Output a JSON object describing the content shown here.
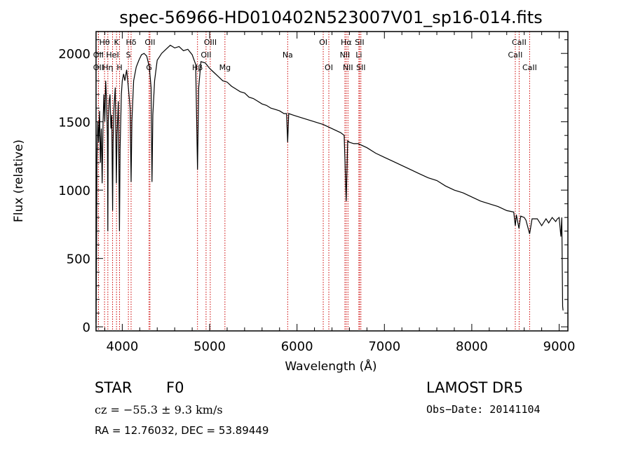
{
  "chart_data": {
    "type": "line",
    "title": "spec-56966-HD010402N523007V01_sp16-014.fits",
    "xlabel": "Wavelength (Å)",
    "ylabel": "Flux (relative)",
    "xlim": [
      3700,
      9100
    ],
    "ylim": [
      -30,
      2160
    ],
    "x_ticks": [
      4000,
      5000,
      6000,
      7000,
      8000,
      9000
    ],
    "y_ticks": [
      0,
      500,
      1000,
      1500,
      2000
    ],
    "grid": false,
    "line_color": "#000000",
    "marker_color": "#cc0000",
    "spectrum_points": [
      [
        3700,
        30
      ],
      [
        3705,
        500
      ],
      [
        3710,
        1200
      ],
      [
        3720,
        1500
      ],
      [
        3730,
        1350
      ],
      [
        3740,
        1580
      ],
      [
        3750,
        1200
      ],
      [
        3760,
        1450
      ],
      [
        3770,
        1050
      ],
      [
        3780,
        1500
      ],
      [
        3790,
        1700
      ],
      [
        3800,
        1500
      ],
      [
        3810,
        1800
      ],
      [
        3820,
        1650
      ],
      [
        3830,
        1400
      ],
      [
        3835,
        700
      ],
      [
        3840,
        1500
      ],
      [
        3850,
        1650
      ],
      [
        3860,
        1700
      ],
      [
        3870,
        1450
      ],
      [
        3880,
        1550
      ],
      [
        3889,
        850
      ],
      [
        3895,
        1350
      ],
      [
        3905,
        1600
      ],
      [
        3920,
        1750
      ],
      [
        3933,
        1050
      ],
      [
        3940,
        1400
      ],
      [
        3955,
        1650
      ],
      [
        3968,
        700
      ],
      [
        3975,
        1300
      ],
      [
        3990,
        1700
      ],
      [
        4000,
        1800
      ],
      [
        4015,
        1850
      ],
      [
        4030,
        1800
      ],
      [
        4050,
        1880
      ],
      [
        4070,
        1750
      ],
      [
        4090,
        1600
      ],
      [
        4101,
        1060
      ],
      [
        4110,
        1500
      ],
      [
        4130,
        1800
      ],
      [
        4160,
        1900
      ],
      [
        4190,
        1950
      ],
      [
        4220,
        1990
      ],
      [
        4250,
        2000
      ],
      [
        4280,
        1980
      ],
      [
        4310,
        1900
      ],
      [
        4330,
        1750
      ],
      [
        4340,
        1060
      ],
      [
        4350,
        1550
      ],
      [
        4370,
        1800
      ],
      [
        4400,
        1950
      ],
      [
        4450,
        2000
      ],
      [
        4500,
        2030
      ],
      [
        4550,
        2060
      ],
      [
        4600,
        2040
      ],
      [
        4650,
        2050
      ],
      [
        4700,
        2020
      ],
      [
        4750,
        2030
      ],
      [
        4800,
        1990
      ],
      [
        4840,
        1920
      ],
      [
        4861,
        1150
      ],
      [
        4875,
        1750
      ],
      [
        4900,
        1940
      ],
      [
        4950,
        1930
      ],
      [
        5000,
        1890
      ],
      [
        5050,
        1860
      ],
      [
        5100,
        1830
      ],
      [
        5150,
        1800
      ],
      [
        5200,
        1790
      ],
      [
        5250,
        1760
      ],
      [
        5300,
        1740
      ],
      [
        5350,
        1720
      ],
      [
        5400,
        1710
      ],
      [
        5450,
        1680
      ],
      [
        5500,
        1670
      ],
      [
        5550,
        1650
      ],
      [
        5600,
        1630
      ],
      [
        5650,
        1620
      ],
      [
        5700,
        1600
      ],
      [
        5750,
        1590
      ],
      [
        5800,
        1580
      ],
      [
        5850,
        1560
      ],
      [
        5880,
        1560
      ],
      [
        5893,
        1350
      ],
      [
        5905,
        1560
      ],
      [
        5950,
        1550
      ],
      [
        6000,
        1540
      ],
      [
        6100,
        1520
      ],
      [
        6200,
        1500
      ],
      [
        6300,
        1480
      ],
      [
        6400,
        1450
      ],
      [
        6500,
        1420
      ],
      [
        6540,
        1400
      ],
      [
        6563,
        920
      ],
      [
        6580,
        1360
      ],
      [
        6600,
        1350
      ],
      [
        6650,
        1340
      ],
      [
        6700,
        1340
      ],
      [
        6800,
        1310
      ],
      [
        6900,
        1270
      ],
      [
        7000,
        1240
      ],
      [
        7100,
        1210
      ],
      [
        7200,
        1180
      ],
      [
        7300,
        1150
      ],
      [
        7400,
        1120
      ],
      [
        7500,
        1090
      ],
      [
        7600,
        1070
      ],
      [
        7700,
        1030
      ],
      [
        7800,
        1000
      ],
      [
        7900,
        980
      ],
      [
        8000,
        950
      ],
      [
        8100,
        920
      ],
      [
        8200,
        900
      ],
      [
        8300,
        880
      ],
      [
        8400,
        850
      ],
      [
        8480,
        840
      ],
      [
        8498,
        740
      ],
      [
        8510,
        820
      ],
      [
        8540,
        720
      ],
      [
        8560,
        810
      ],
      [
        8600,
        800
      ],
      [
        8620,
        780
      ],
      [
        8662,
        680
      ],
      [
        8690,
        790
      ],
      [
        8750,
        790
      ],
      [
        8800,
        740
      ],
      [
        8850,
        790
      ],
      [
        8880,
        760
      ],
      [
        8920,
        800
      ],
      [
        8960,
        770
      ],
      [
        8980,
        790
      ],
      [
        9000,
        800
      ],
      [
        9020,
        660
      ],
      [
        9030,
        800
      ],
      [
        9040,
        150
      ],
      [
        9045,
        120
      ]
    ],
    "line_markers": [
      {
        "label": "Hθ",
        "x": 3797,
        "row": 0
      },
      {
        "label": "K",
        "x": 3934,
        "row": 0
      },
      {
        "label": "Hδ",
        "x": 4101,
        "row": 0
      },
      {
        "label": "OII",
        "x": 3727,
        "row": 1
      },
      {
        "label": "HeI",
        "x": 3889,
        "row": 1
      },
      {
        "label": "S",
        "x": 4070,
        "row": 1
      },
      {
        "label": "OII",
        "x": 3727,
        "row": 2
      },
      {
        "label": "Hη",
        "x": 3835,
        "row": 2
      },
      {
        "label": "H",
        "x": 3969,
        "row": 2
      },
      {
        "label": "OII",
        "x": 4317,
        "row": 0
      },
      {
        "label": "G",
        "x": 4307,
        "row": 2
      },
      {
        "label": "OIII",
        "x": 5007,
        "row": 0
      },
      {
        "label": "OII",
        "x": 4959,
        "row": 1
      },
      {
        "label": "Hβ",
        "x": 4861,
        "row": 2
      },
      {
        "label": "Mg",
        "x": 5175,
        "row": 2
      },
      {
        "label": "Na",
        "x": 5893,
        "row": 1
      },
      {
        "label": "OI",
        "x": 6300,
        "row": 0
      },
      {
        "label": "OI",
        "x": 6364,
        "row": 2
      },
      {
        "label": "Hα",
        "x": 6563,
        "row": 0
      },
      {
        "label": "SII",
        "x": 6716,
        "row": 0
      },
      {
        "label": "NII",
        "x": 6548,
        "row": 1
      },
      {
        "label": "Li",
        "x": 6708,
        "row": 1
      },
      {
        "label": "NII",
        "x": 6583,
        "row": 2
      },
      {
        "label": "SII",
        "x": 6731,
        "row": 2
      },
      {
        "label": "CaII",
        "x": 8542,
        "row": 0
      },
      {
        "label": "CaII",
        "x": 8498,
        "row": 1
      },
      {
        "label": "CaII",
        "x": 8662,
        "row": 2
      }
    ]
  },
  "info": {
    "object_class": "STAR",
    "subclass": "F0",
    "survey": "LAMOST DR5",
    "redshift": "cz = −55.3 ± 9.3 km/s",
    "obs_date": "Obs−Date: 20141104",
    "coords": "RA =  12.76032, DEC =  53.89449"
  }
}
